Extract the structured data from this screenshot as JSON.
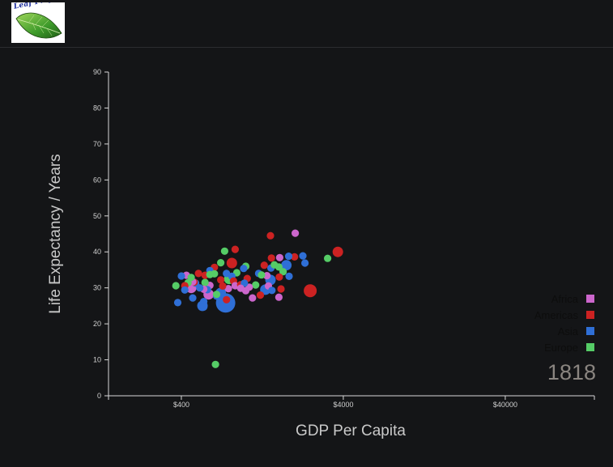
{
  "header": {
    "logo_text": "Leaf Project"
  },
  "colors": {
    "background": "#141517",
    "axis": "#d8d8d8",
    "Africa": "#cc66cc",
    "Americas": "#cc2222",
    "Asia": "#2f6fd6",
    "Europe": "#55cc66"
  },
  "chart_data": {
    "type": "scatter",
    "xlabel": "GDP Per Capita",
    "ylabel": "Life Expectancy / Years",
    "x_scale": "log",
    "xlim": [
      142,
      142000
    ],
    "ylim": [
      0,
      90
    ],
    "x_ticks": [
      {
        "value": 400,
        "label": "$400"
      },
      {
        "value": 4000,
        "label": "$4000"
      },
      {
        "value": 40000,
        "label": "$40000"
      }
    ],
    "y_ticks": [
      0,
      10,
      20,
      30,
      40,
      50,
      60,
      70,
      80,
      90
    ],
    "legend": {
      "position": "right",
      "entries": [
        "Africa",
        "Americas",
        "Asia",
        "Europe"
      ]
    },
    "year": "1818",
    "points": [
      {
        "region": "Africa",
        "gdp": 2020,
        "life": 45.2,
        "size": "small"
      },
      {
        "region": "Americas",
        "gdp": 3700,
        "life": 40.0,
        "size": "medium"
      },
      {
        "region": "Europe",
        "gdp": 3200,
        "life": 38.2,
        "size": "small"
      },
      {
        "region": "Americas",
        "gdp": 2500,
        "life": 29.2,
        "size": "large"
      },
      {
        "region": "Americas",
        "gdp": 1420,
        "life": 44.5,
        "size": "small"
      },
      {
        "region": "Americas",
        "gdp": 2000,
        "life": 38.6,
        "size": "small"
      },
      {
        "region": "Asia",
        "gdp": 1840,
        "life": 38.8,
        "size": "small"
      },
      {
        "region": "Asia",
        "gdp": 2320,
        "life": 36.9,
        "size": "small"
      },
      {
        "region": "Asia",
        "gdp": 2250,
        "life": 38.9,
        "size": "small"
      },
      {
        "region": "Africa",
        "gdp": 1620,
        "life": 38.4,
        "size": "small"
      },
      {
        "region": "Americas",
        "gdp": 1440,
        "life": 38.3,
        "size": "small"
      },
      {
        "region": "Asia",
        "gdp": 1780,
        "life": 36.3,
        "size": "medium"
      },
      {
        "region": "Americas",
        "gdp": 860,
        "life": 40.7,
        "size": "small"
      },
      {
        "region": "Europe",
        "gdp": 740,
        "life": 40.2,
        "size": "small"
      },
      {
        "region": "Europe",
        "gdp": 1600,
        "life": 35.8,
        "size": "small"
      },
      {
        "region": "Asia",
        "gdp": 1850,
        "life": 33.2,
        "size": "small"
      },
      {
        "region": "Europe",
        "gdp": 1700,
        "life": 34.5,
        "size": "small"
      },
      {
        "region": "Americas",
        "gdp": 1610,
        "life": 33.0,
        "size": "small"
      },
      {
        "region": "Americas",
        "gdp": 1650,
        "life": 29.7,
        "size": "small"
      },
      {
        "region": "Africa",
        "gdp": 1600,
        "life": 27.4,
        "size": "small"
      },
      {
        "region": "Asia",
        "gdp": 1430,
        "life": 35.5,
        "size": "small"
      },
      {
        "region": "Europe",
        "gdp": 1500,
        "life": 36.4,
        "size": "small"
      },
      {
        "region": "Americas",
        "gdp": 1300,
        "life": 36.3,
        "size": "small"
      },
      {
        "region": "Asia",
        "gdp": 1200,
        "life": 34.0,
        "size": "small"
      },
      {
        "region": "Africa",
        "gdp": 1350,
        "life": 33.4,
        "size": "small"
      },
      {
        "region": "Europe",
        "gdp": 1250,
        "life": 33.6,
        "size": "small"
      },
      {
        "region": "Asia",
        "gdp": 1420,
        "life": 32.2,
        "size": "medium"
      },
      {
        "region": "Africa",
        "gdp": 1380,
        "life": 30.5,
        "size": "small"
      },
      {
        "region": "Asia",
        "gdp": 1320,
        "life": 29.5,
        "size": "medium"
      },
      {
        "region": "Asia",
        "gdp": 1450,
        "life": 29.3,
        "size": "small"
      },
      {
        "region": "Europe",
        "gdp": 1150,
        "life": 30.8,
        "size": "small"
      },
      {
        "region": "Africa",
        "gdp": 1050,
        "life": 30.2,
        "size": "small"
      },
      {
        "region": "Africa",
        "gdp": 1100,
        "life": 27.2,
        "size": "small"
      },
      {
        "region": "Americas",
        "gdp": 1230,
        "life": 28.0,
        "size": "small"
      },
      {
        "region": "Americas",
        "gdp": 1020,
        "life": 32.6,
        "size": "small"
      },
      {
        "region": "Europe",
        "gdp": 1000,
        "life": 36.0,
        "size": "small"
      },
      {
        "region": "Asia",
        "gdp": 970,
        "life": 35.4,
        "size": "small"
      },
      {
        "region": "Europe",
        "gdp": 880,
        "life": 34.2,
        "size": "small"
      },
      {
        "region": "Americas",
        "gdp": 820,
        "life": 36.9,
        "size": "medium"
      },
      {
        "region": "Europe",
        "gdp": 700,
        "life": 37.0,
        "size": "small"
      },
      {
        "region": "Americas",
        "gdp": 640,
        "life": 35.7,
        "size": "small"
      },
      {
        "region": "Asia",
        "gdp": 600,
        "life": 34.8,
        "size": "small"
      },
      {
        "region": "Asia",
        "gdp": 760,
        "life": 34.0,
        "size": "small"
      },
      {
        "region": "Europe",
        "gdp": 640,
        "life": 33.9,
        "size": "small"
      },
      {
        "region": "Asia",
        "gdp": 820,
        "life": 33.2,
        "size": "small"
      },
      {
        "region": "Americas",
        "gdp": 840,
        "life": 31.9,
        "size": "small"
      },
      {
        "region": "Europe",
        "gdp": 790,
        "life": 32.5,
        "size": "medium"
      },
      {
        "region": "Africa",
        "gdp": 860,
        "life": 30.6,
        "size": "small"
      },
      {
        "region": "Americas",
        "gdp": 930,
        "life": 30.9,
        "size": "small"
      },
      {
        "region": "Asia",
        "gdp": 980,
        "life": 31.3,
        "size": "small"
      },
      {
        "region": "Africa",
        "gdp": 930,
        "life": 29.9,
        "size": "small"
      },
      {
        "region": "Africa",
        "gdp": 1000,
        "life": 29.2,
        "size": "small"
      },
      {
        "region": "Africa",
        "gdp": 780,
        "life": 29.8,
        "size": "small"
      },
      {
        "region": "Americas",
        "gdp": 720,
        "life": 30.5,
        "size": "small"
      },
      {
        "region": "Americas",
        "gdp": 700,
        "life": 32.2,
        "size": "small"
      },
      {
        "region": "Asia",
        "gdp": 700,
        "life": 28.6,
        "size": "medium"
      },
      {
        "region": "Americas",
        "gdp": 760,
        "life": 26.7,
        "size": "small"
      },
      {
        "region": "Asia",
        "gdp": 750,
        "life": 25.8,
        "size": "xlarge"
      },
      {
        "region": "Asia",
        "gdp": 660,
        "life": 27.7,
        "size": "small"
      },
      {
        "region": "Europe",
        "gdp": 660,
        "life": 28.2,
        "size": "small"
      },
      {
        "region": "Africa",
        "gdp": 600,
        "life": 30.7,
        "size": "small"
      },
      {
        "region": "Europe",
        "gdp": 560,
        "life": 31.5,
        "size": "small"
      },
      {
        "region": "Asia",
        "gdp": 580,
        "life": 29.5,
        "size": "small"
      },
      {
        "region": "Africa",
        "gdp": 590,
        "life": 28.2,
        "size": "medium"
      },
      {
        "region": "Africa",
        "gdp": 550,
        "life": 29.6,
        "size": "small"
      },
      {
        "region": "Asia",
        "gdp": 520,
        "life": 30.0,
        "size": "small"
      },
      {
        "region": "Americas",
        "gdp": 560,
        "life": 33.5,
        "size": "small"
      },
      {
        "region": "Europe",
        "gdp": 600,
        "life": 33.7,
        "size": "small"
      },
      {
        "region": "Americas",
        "gdp": 510,
        "life": 34.0,
        "size": "small"
      },
      {
        "region": "Asia",
        "gdp": 490,
        "life": 31.3,
        "size": "small"
      },
      {
        "region": "Americas",
        "gdp": 480,
        "life": 31.6,
        "size": "small"
      },
      {
        "region": "Africa",
        "gdp": 460,
        "life": 30.0,
        "size": "medium"
      },
      {
        "region": "Africa",
        "gdp": 470,
        "life": 31.7,
        "size": "small"
      },
      {
        "region": "Europe",
        "gdp": 440,
        "life": 31.4,
        "size": "small"
      },
      {
        "region": "Africa",
        "gdp": 430,
        "life": 33.5,
        "size": "small"
      },
      {
        "region": "Asia",
        "gdp": 400,
        "life": 33.3,
        "size": "small"
      },
      {
        "region": "Europe",
        "gdp": 460,
        "life": 32.9,
        "size": "small"
      },
      {
        "region": "Americas",
        "gdp": 420,
        "life": 30.6,
        "size": "small"
      },
      {
        "region": "Asia",
        "gdp": 420,
        "life": 29.4,
        "size": "small"
      },
      {
        "region": "Europe",
        "gdp": 370,
        "life": 30.6,
        "size": "small"
      },
      {
        "region": "Asia",
        "gdp": 380,
        "life": 25.9,
        "size": "small"
      },
      {
        "region": "Asia",
        "gdp": 470,
        "life": 27.2,
        "size": "small"
      },
      {
        "region": "Asia",
        "gdp": 550,
        "life": 26.2,
        "size": "small"
      },
      {
        "region": "Asia",
        "gdp": 550,
        "life": 24.7,
        "size": "small"
      },
      {
        "region": "Asia",
        "gdp": 540,
        "life": 25.0,
        "size": "medium"
      },
      {
        "region": "Europe",
        "gdp": 650,
        "life": 8.7,
        "size": "small"
      }
    ]
  }
}
